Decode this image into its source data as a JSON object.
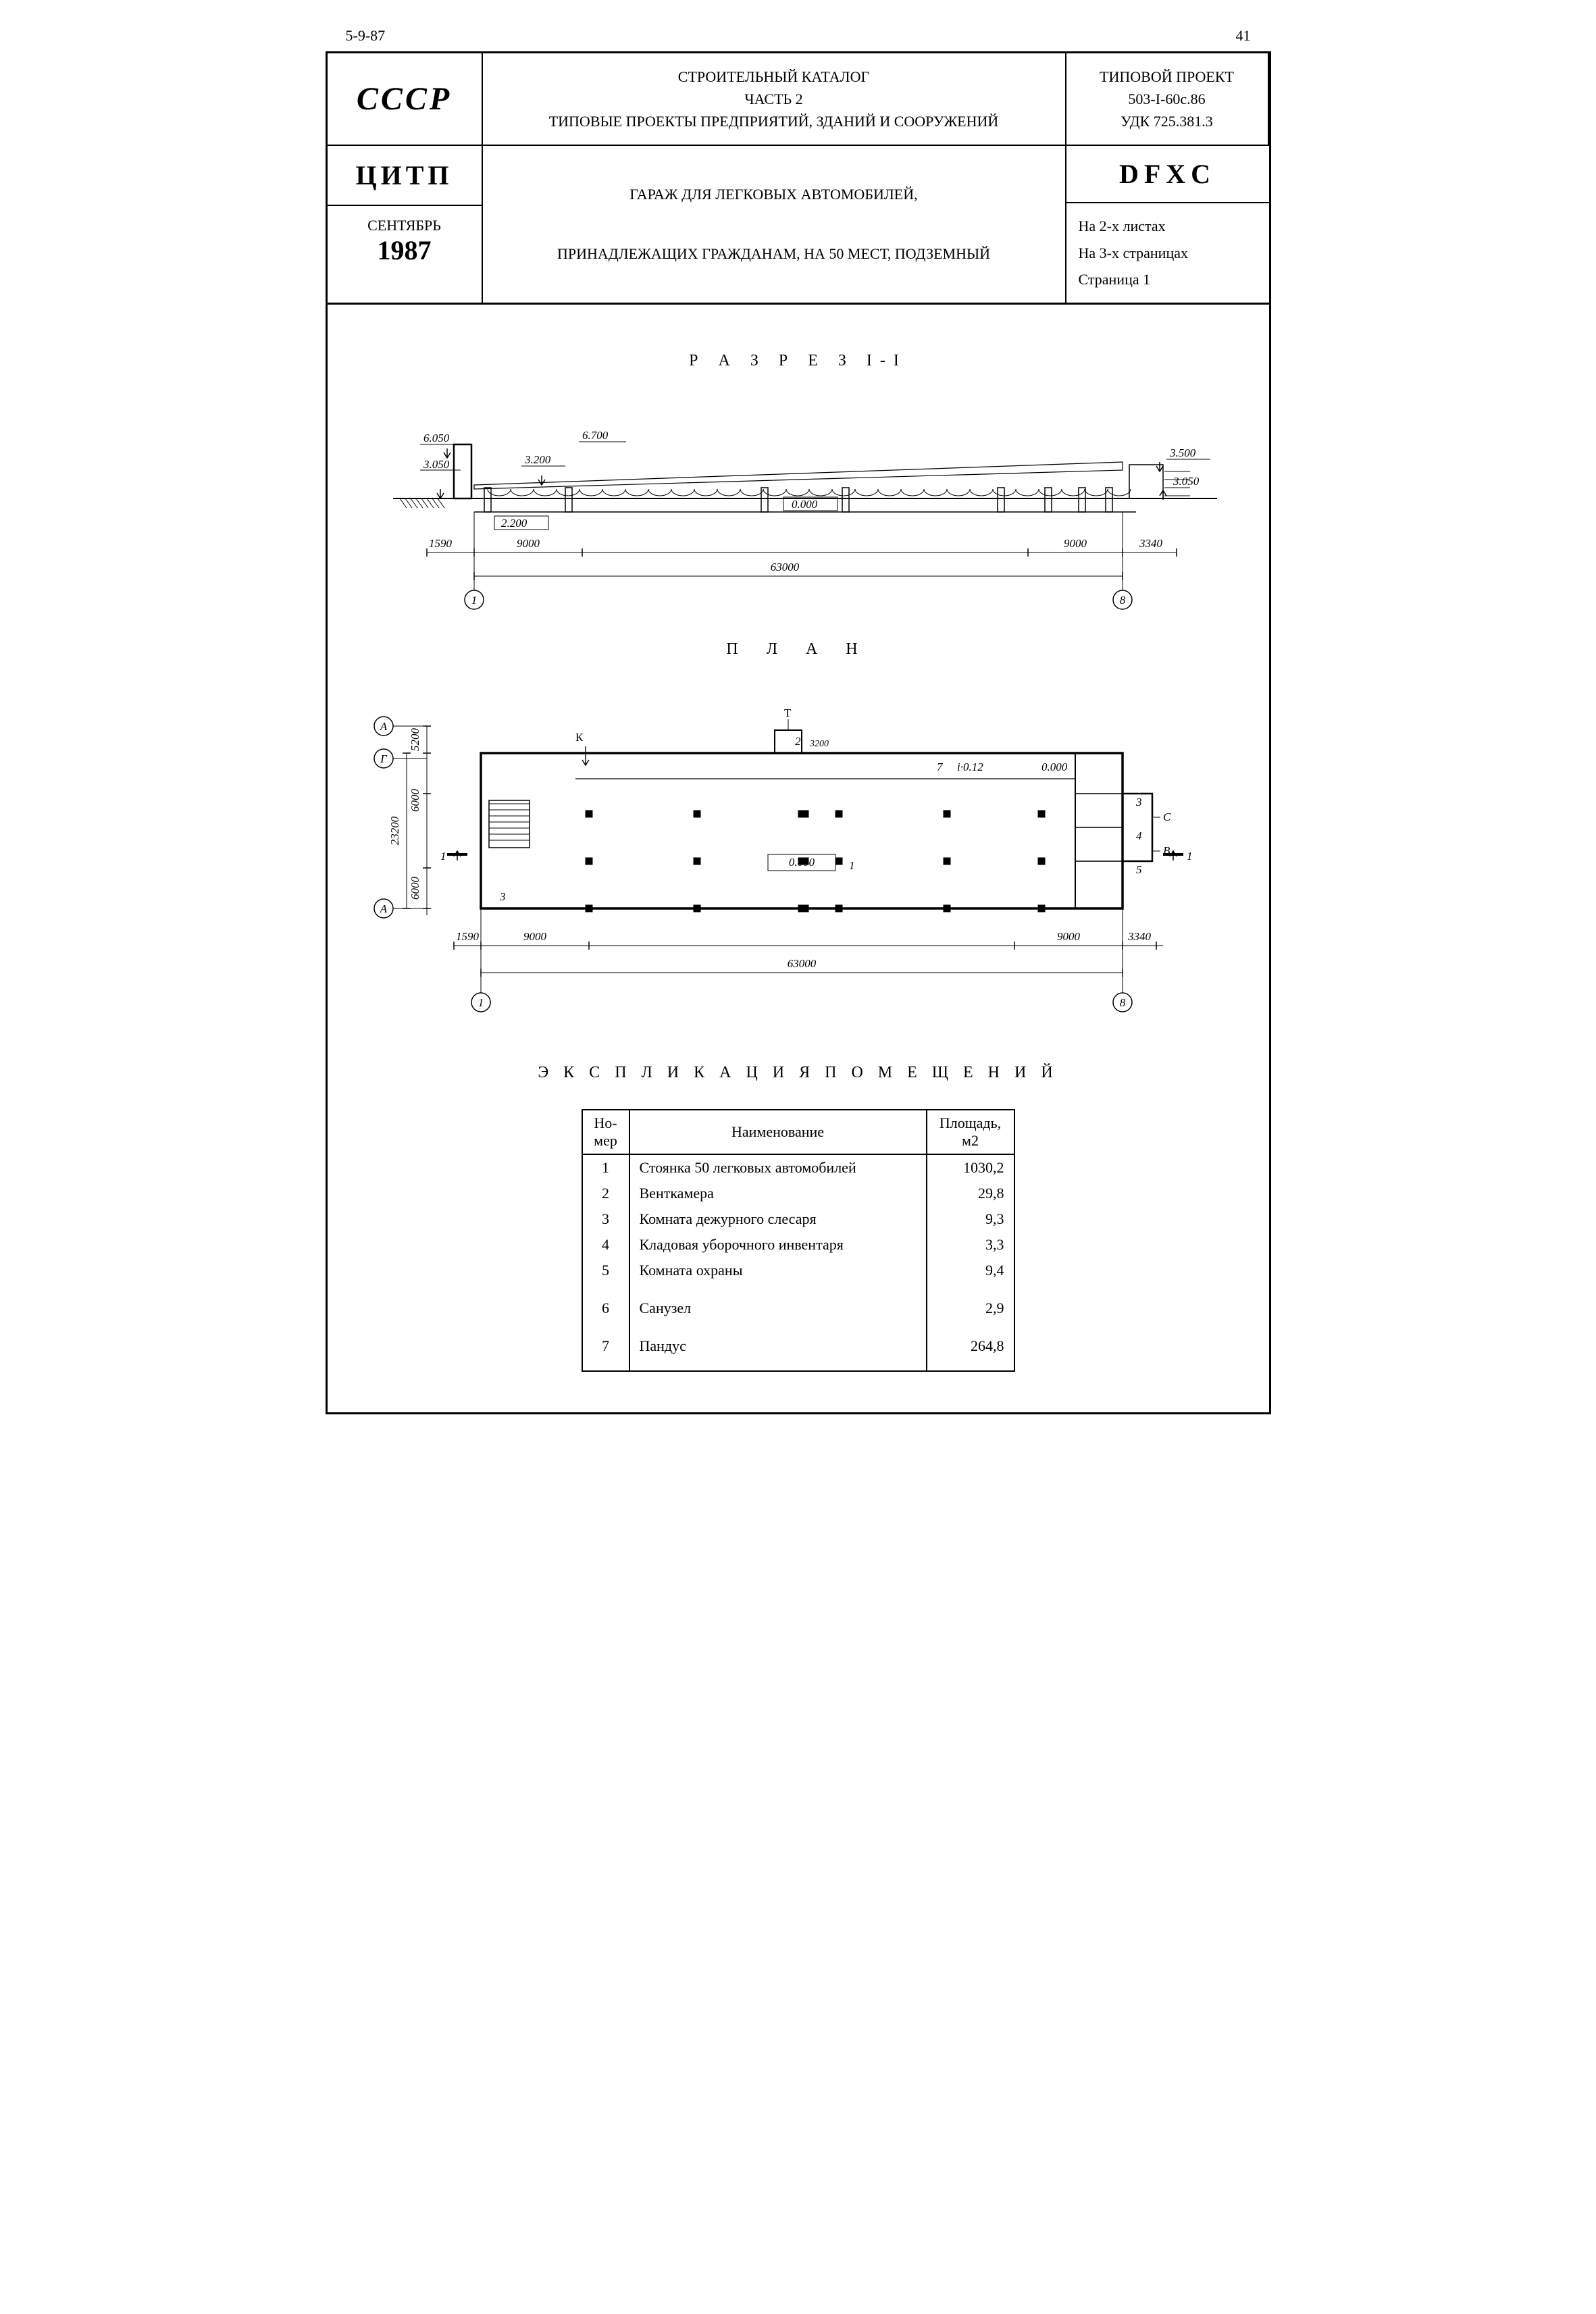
{
  "top_header": {
    "left": "5-9-87",
    "page_no": "41"
  },
  "title_block": {
    "cccp": "СССР",
    "catalog_line1": "СТРОИТЕЛЬНЫЙ КАТАЛОГ",
    "catalog_line2": "ЧАСТЬ 2",
    "catalog_line3": "ТИПОВЫЕ ПРОЕКТЫ ПРЕДПРИЯТИЙ, ЗДАНИЙ И СООРУЖЕНИЙ",
    "proj_label": "ТИПОВОЙ ПРОЕКТ",
    "proj_no": "503-I-60с.86",
    "udk": "УДК 725.381.3",
    "citp": "ЦИТП",
    "month": "СЕНТЯБРЬ",
    "year": "1987",
    "description1": "ГАРАЖ ДЛЯ ЛЕГКОВЫХ АВТОМОБИЛЕЙ,",
    "description2": "ПРИНАДЛЕЖАЩИХ ГРАЖДАНАМ, НА 50 МЕСТ, ПОДЗЕМНЫЙ",
    "dfxc": "DFXC",
    "sheets1": "На 2-х листах",
    "sheets2": "На 3-х страницах",
    "sheets3": "Страница 1"
  },
  "section": {
    "title": "Р А З Р Е З   I-I",
    "elevations": {
      "e1": "6.050",
      "e2": "6.700",
      "e3": "3.200",
      "e4": "3.050",
      "e5": "3.500",
      "e6": "3.050",
      "e7": "2.200",
      "e8": "0.000"
    },
    "dims": {
      "d1": "1590",
      "d2": "9000",
      "d3": "9000",
      "d4": "3340",
      "total": "63000"
    },
    "axes": {
      "a1": "1",
      "a2": "8"
    }
  },
  "plan": {
    "title": "П Л А Н",
    "labels": {
      "K": "К",
      "T": "Т",
      "C": "С",
      "B": "В",
      "i": "i·0.12",
      "zero": "0.000",
      "one": "1",
      "two": "2",
      "three": "3",
      "four": "4",
      "five": "5",
      "seven": "7",
      "thr200": "3200",
      "i_zero": "0.000"
    },
    "dims_v": {
      "v1": "5200",
      "v2": "6000",
      "v3": "6000",
      "total_v": "23200"
    },
    "dims_h": {
      "d1": "1590",
      "d2": "9000",
      "d3": "9000",
      "d4": "3340",
      "total": "63000"
    },
    "axes_v": {
      "A": "А",
      "G": "Г",
      "A2": "А"
    },
    "axes_h": {
      "h1": "1",
      "h2": "8"
    },
    "sec_marks": "1"
  },
  "explication": {
    "title": "Э К С П Л И К А Ц И Я    П О М Е Щ Е Н И Й",
    "headers": {
      "no": "Но-\nмер",
      "name": "Наименование",
      "area": "Площадь,\nм2"
    },
    "rows": [
      {
        "no": "1",
        "name": "Стоянка 50 легковых автомобилей",
        "area": "1030,2"
      },
      {
        "no": "2",
        "name": "Венткамера",
        "area": "29,8"
      },
      {
        "no": "3",
        "name": "Комната дежурного слесаря",
        "area": "9,3"
      },
      {
        "no": "4",
        "name": "Кладовая уборочного инвентаря",
        "area": "3,3"
      },
      {
        "no": "5",
        "name": "Комната охраны",
        "area": "9,4"
      },
      {
        "no": "6",
        "name": "Санузел",
        "area": "2,9"
      },
      {
        "no": "7",
        "name": "Пандус",
        "area": "264,8"
      }
    ]
  },
  "style": {
    "stroke": "#000000",
    "thin": 1.2,
    "med": 2,
    "thick": 3.5,
    "font": "18px serif",
    "font_it": "italic 18px serif"
  }
}
